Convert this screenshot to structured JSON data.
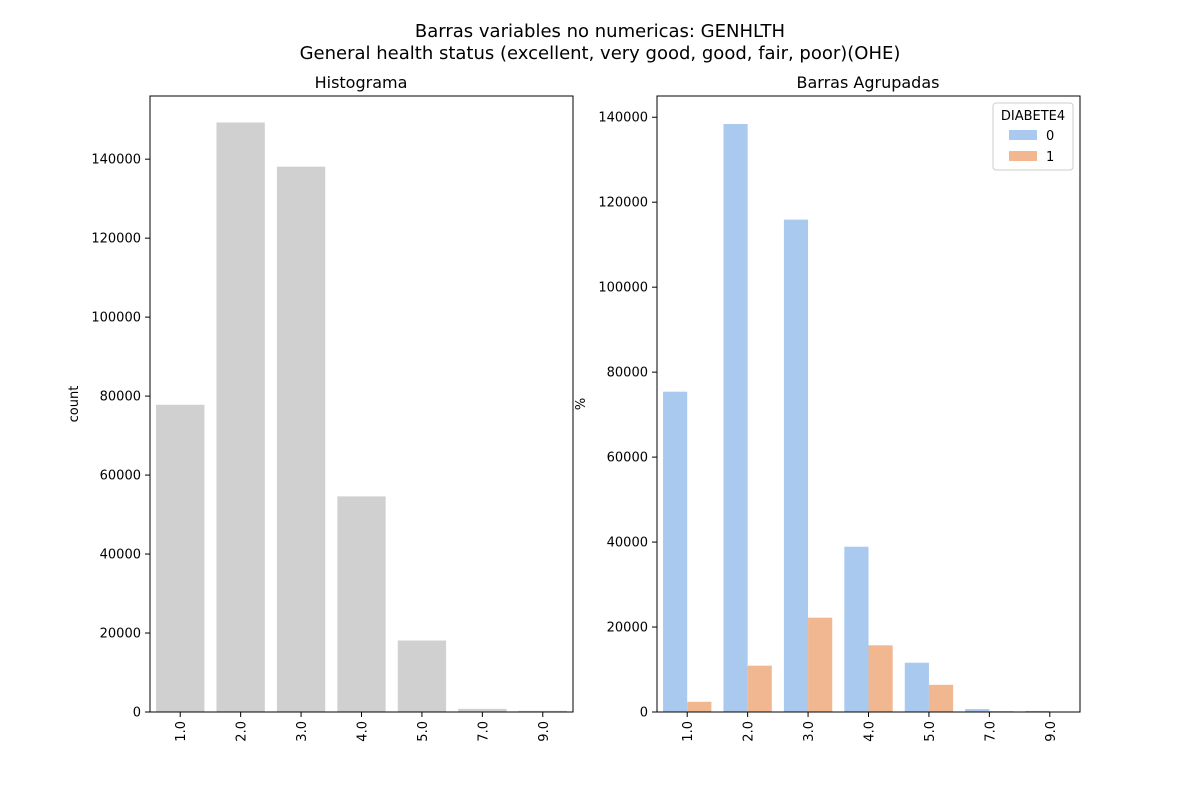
{
  "figure": {
    "title_line1": "Barras variables no numericas: GENHLTH",
    "title_line2": "General health status (excellent, very good, good, fair, poor)(OHE)"
  },
  "chart_data": [
    {
      "type": "bar",
      "title": "Histograma",
      "xlabel": "",
      "ylabel": "count",
      "categories": [
        "1.0",
        "2.0",
        "3.0",
        "4.0",
        "5.0",
        "7.0",
        "9.0"
      ],
      "values": [
        77800,
        149300,
        138100,
        54600,
        18100,
        800,
        300
      ],
      "ylim": [
        0,
        156000
      ],
      "yticks": [
        0,
        20000,
        40000,
        60000,
        80000,
        100000,
        120000,
        140000
      ],
      "color": "#d0d0d0",
      "grid": false
    },
    {
      "type": "bar",
      "title": "Barras Agrupadas",
      "xlabel": "",
      "ylabel": "%",
      "categories": [
        "1.0",
        "2.0",
        "3.0",
        "4.0",
        "5.0",
        "7.0",
        "9.0"
      ],
      "legend": {
        "title": "DIABETE4",
        "position": "top-right"
      },
      "series": [
        {
          "name": "0",
          "color": "#a9c9ef",
          "values": [
            75400,
            138400,
            115900,
            38900,
            11600,
            700,
            250
          ]
        },
        {
          "name": "1",
          "color": "#f1b790",
          "values": [
            2400,
            10900,
            22200,
            15700,
            6400,
            200,
            50
          ]
        }
      ],
      "ylim": [
        0,
        145000
      ],
      "yticks": [
        0,
        20000,
        40000,
        60000,
        80000,
        100000,
        120000,
        140000
      ],
      "grid": false
    }
  ]
}
